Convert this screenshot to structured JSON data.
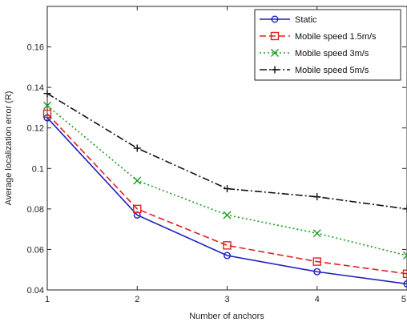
{
  "chart_data": {
    "type": "line",
    "xlabel": "Number of anchors",
    "ylabel": "Average localization error (R)",
    "xlim": [
      1,
      5
    ],
    "ylim": [
      0.04,
      0.18
    ],
    "x_ticks": [
      1,
      2,
      3,
      4,
      5
    ],
    "y_ticks": [
      0.04,
      0.06,
      0.08,
      0.1,
      0.12,
      0.14,
      0.16
    ],
    "x_tick_labels": [
      "1",
      "2",
      "3",
      "4",
      "5"
    ],
    "y_tick_labels": [
      "0.04",
      "0.06",
      "0.08",
      "0.1",
      "0.12",
      "0.14",
      "0.16"
    ],
    "grid": false,
    "legend_position": "top-right",
    "x": [
      1,
      2,
      3,
      4,
      5
    ],
    "series": [
      {
        "name": "Static",
        "values": [
          0.125,
          0.077,
          0.057,
          0.049,
          0.043
        ],
        "color": "#1f1fbf",
        "dash": "solid",
        "marker": "circle"
      },
      {
        "name": "Mobile speed 1.5m/s",
        "values": [
          0.127,
          0.08,
          0.062,
          0.054,
          0.048
        ],
        "color": "#e0201f",
        "dash": "dashed",
        "marker": "square"
      },
      {
        "name": "Mobile speed 3m/s",
        "values": [
          0.131,
          0.094,
          0.077,
          0.068,
          0.057
        ],
        "color": "#1a9a1a",
        "dash": "dotted",
        "marker": "x"
      },
      {
        "name": "Mobile speed 5m/s",
        "values": [
          0.137,
          0.11,
          0.09,
          0.086,
          0.08
        ],
        "color": "#111111",
        "dash": "dashdot",
        "marker": "plus"
      }
    ]
  }
}
